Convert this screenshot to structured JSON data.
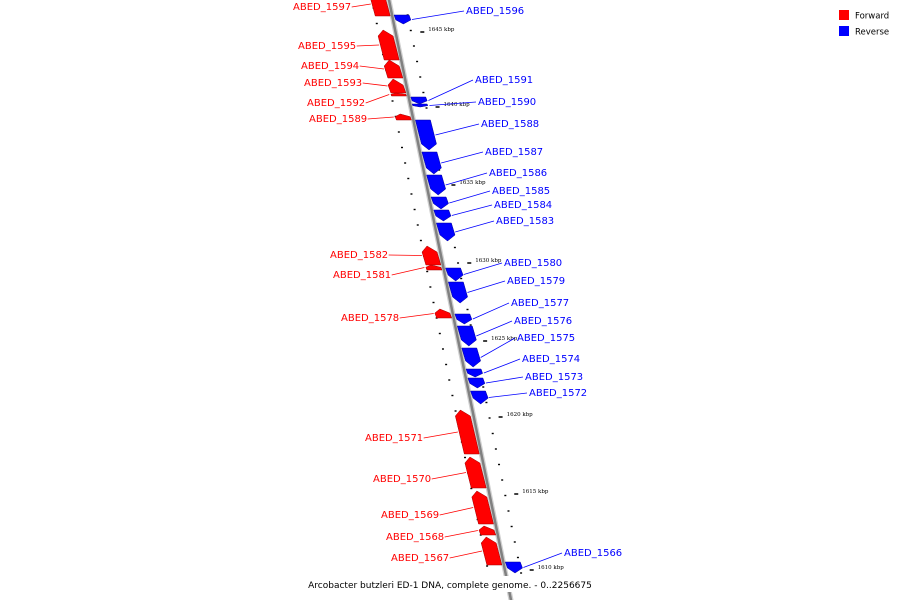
{
  "caption": "Arcobacter butzleri ED-1 DNA, complete genome. - 0..2256675",
  "colors": {
    "forward": "#ff0000",
    "reverse": "#0000ff",
    "backbone": "#808080"
  },
  "legend": [
    {
      "label": "Forward",
      "color": "#ff0000"
    },
    {
      "label": "Reverse",
      "color": "#0000ff"
    }
  ],
  "ticks": [
    "1645 kbp",
    "1640 kbp",
    "1635 kbp",
    "1630 kbp",
    "1625 kbp",
    "1620 kbp",
    "1615 kbp",
    "1610 kbp"
  ],
  "genes": [
    {
      "name": "ABED_1597",
      "strand": "forward"
    },
    {
      "name": "ABED_1596",
      "strand": "reverse"
    },
    {
      "name": "ABED_1595",
      "strand": "forward"
    },
    {
      "name": "ABED_1594",
      "strand": "forward"
    },
    {
      "name": "ABED_1593",
      "strand": "forward"
    },
    {
      "name": "ABED_1592",
      "strand": "forward"
    },
    {
      "name": "ABED_1591",
      "strand": "reverse"
    },
    {
      "name": "ABED_1590",
      "strand": "reverse"
    },
    {
      "name": "ABED_1589",
      "strand": "forward"
    },
    {
      "name": "ABED_1588",
      "strand": "reverse"
    },
    {
      "name": "ABED_1587",
      "strand": "reverse"
    },
    {
      "name": "ABED_1586",
      "strand": "reverse"
    },
    {
      "name": "ABED_1585",
      "strand": "reverse"
    },
    {
      "name": "ABED_1584",
      "strand": "reverse"
    },
    {
      "name": "ABED_1583",
      "strand": "reverse"
    },
    {
      "name": "ABED_1582",
      "strand": "forward"
    },
    {
      "name": "ABED_1581",
      "strand": "forward"
    },
    {
      "name": "ABED_1580",
      "strand": "reverse"
    },
    {
      "name": "ABED_1579",
      "strand": "reverse"
    },
    {
      "name": "ABED_1578",
      "strand": "forward"
    },
    {
      "name": "ABED_1577",
      "strand": "reverse"
    },
    {
      "name": "ABED_1576",
      "strand": "reverse"
    },
    {
      "name": "ABED_1575",
      "strand": "reverse"
    },
    {
      "name": "ABED_1574",
      "strand": "reverse"
    },
    {
      "name": "ABED_1573",
      "strand": "reverse"
    },
    {
      "name": "ABED_1572",
      "strand": "reverse"
    },
    {
      "name": "ABED_1571",
      "strand": "forward"
    },
    {
      "name": "ABED_1570",
      "strand": "forward"
    },
    {
      "name": "ABED_1569",
      "strand": "forward"
    },
    {
      "name": "ABED_1568",
      "strand": "forward"
    },
    {
      "name": "ABED_1567",
      "strand": "forward"
    },
    {
      "name": "ABED_1566",
      "strand": "reverse"
    }
  ]
}
